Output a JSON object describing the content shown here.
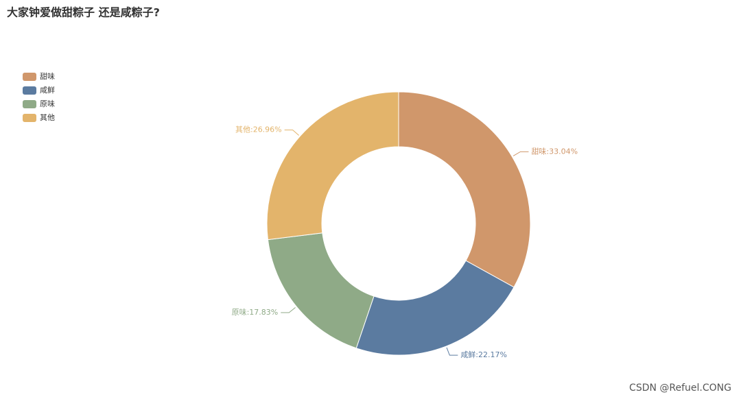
{
  "chart_data": {
    "type": "pie",
    "title": "大家钟爱做甜粽子 还是咸粽子?",
    "categories": [
      "甜味",
      "咸鲜",
      "原味",
      "其他"
    ],
    "values": [
      33.04,
      22.17,
      17.83,
      26.96
    ],
    "value_labels": [
      "甜味:33.04%",
      "咸鲜:22.17%",
      "原味:17.83%",
      "其他:26.96%"
    ],
    "colors": [
      "#d0976b",
      "#5b7ba0",
      "#8faa87",
      "#e3b46b"
    ],
    "donut": true,
    "legend": "top-left"
  },
  "watermark": "CSDN @Refuel.CONG"
}
